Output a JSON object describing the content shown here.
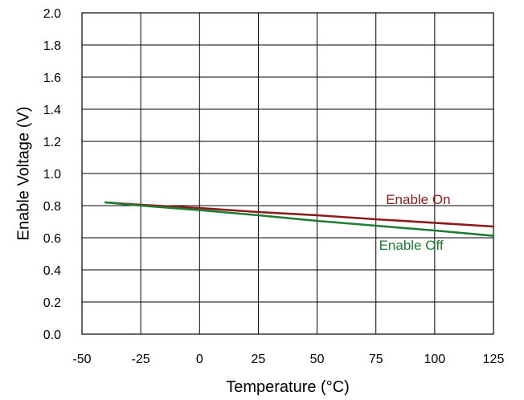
{
  "chart_data": {
    "type": "line",
    "title": "",
    "xlabel": "Temperature (°C)",
    "ylabel": "Enable Voltage (V)",
    "xlim": [
      -50,
      125
    ],
    "ylim": [
      0.0,
      2.0
    ],
    "x_ticks": [
      -50,
      -25,
      0,
      25,
      50,
      75,
      100,
      125
    ],
    "x_tick_labels": [
      "-50",
      "-25",
      "0",
      "25",
      "50",
      "75",
      "100",
      "125"
    ],
    "y_ticks": [
      0.0,
      0.2,
      0.4,
      0.6,
      0.8,
      1.0,
      1.2,
      1.4,
      1.6,
      1.8,
      2.0
    ],
    "y_tick_labels": [
      "0.0",
      "0.2",
      "0.4",
      "0.6",
      "0.8",
      "1.0",
      "1.2",
      "1.4",
      "1.6",
      "1.8",
      "2.0"
    ],
    "grid": true,
    "legend": "inline labels near right end of lines",
    "series": [
      {
        "name": "Enable On",
        "color": "#8b1a1a",
        "x": [
          -40,
          -25,
          0,
          25,
          50,
          75,
          100,
          125
        ],
        "y": [
          0.82,
          0.805,
          0.785,
          0.76,
          0.74,
          0.715,
          0.693,
          0.67
        ]
      },
      {
        "name": "Enable Off",
        "color": "#1e7d32",
        "x": [
          -40,
          -25,
          0,
          25,
          50,
          75,
          100,
          125
        ],
        "y": [
          0.82,
          0.8,
          0.772,
          0.74,
          0.705,
          0.675,
          0.645,
          0.612
        ]
      }
    ]
  }
}
